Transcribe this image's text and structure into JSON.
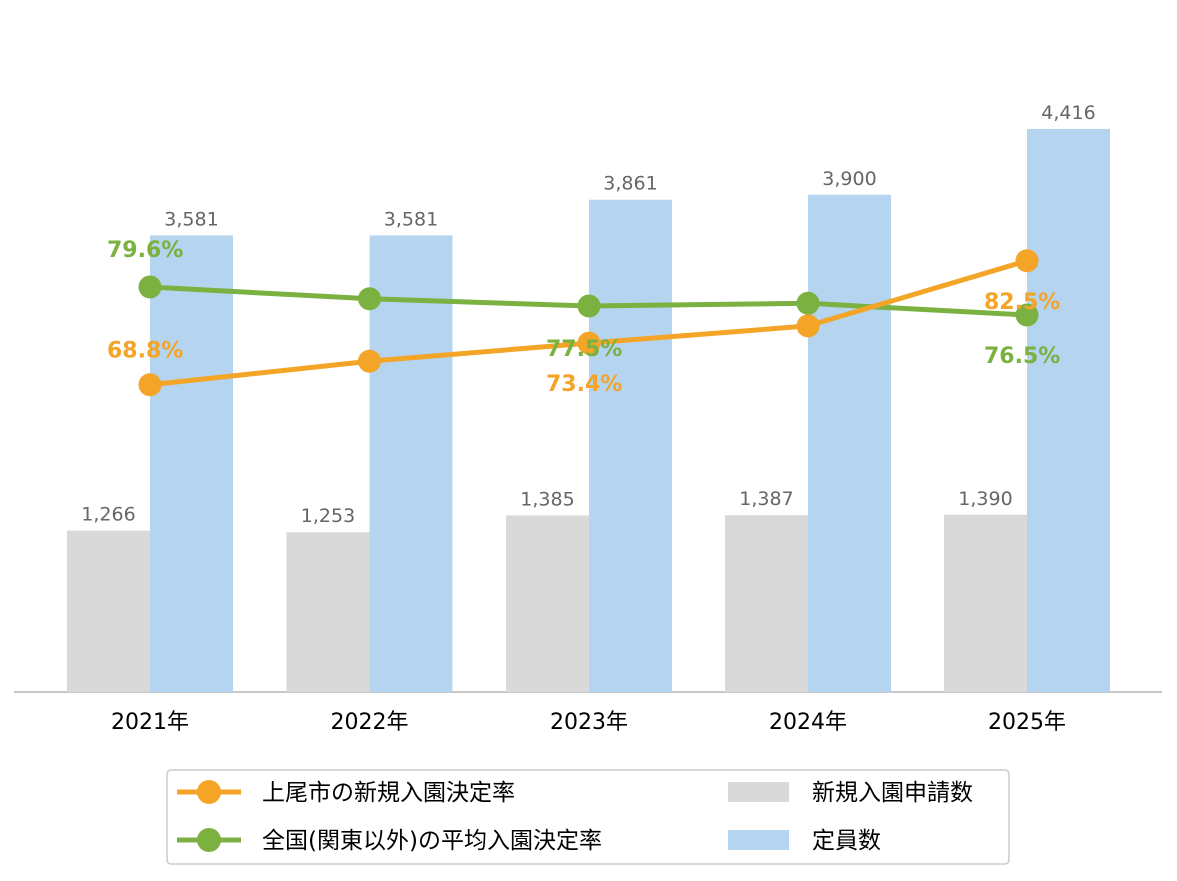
{
  "chart_data": {
    "type": "bar",
    "categories": [
      "2021年",
      "2022年",
      "2023年",
      "2024年",
      "2025年"
    ],
    "bar_series": [
      {
        "name": "新規入園申請数",
        "values": [
          1266,
          1253,
          1385,
          1387,
          1390
        ],
        "labels": [
          "1,266",
          "1,253",
          "1,385",
          "1,387",
          "1,390"
        ],
        "color": "#d9d9d9"
      },
      {
        "name": "定員数",
        "values": [
          3581,
          3581,
          3861,
          3900,
          4416
        ],
        "labels": [
          "3,581",
          "3,581",
          "3,861",
          "3,900",
          "4,416"
        ],
        "color": "#b4d4ef"
      }
    ],
    "line_series": [
      {
        "name": "上尾市の新規入園決定率",
        "values": [
          68.8,
          71.4,
          73.4,
          75.3,
          82.5
        ],
        "labels": [
          "68.8%",
          "",
          "73.4%",
          "",
          "82.5%"
        ],
        "color": "#f4a427"
      },
      {
        "name": "全国(関東以外)の平均入園決定率",
        "values": [
          79.6,
          78.3,
          77.5,
          77.8,
          76.5
        ],
        "labels": [
          "79.6%",
          "",
          "77.5%",
          "",
          "76.5%"
        ],
        "color": "#7bb141"
      }
    ],
    "ylim_bars": [
      0,
      5000
    ],
    "grid": false,
    "legend_position": "bottom",
    "legend": {
      "line_entries": [
        "上尾市の新規入園決定率",
        "全国(関東以外)の平均入園決定率"
      ],
      "bar_entries": [
        "新規入園申請数",
        "定員数"
      ]
    }
  }
}
